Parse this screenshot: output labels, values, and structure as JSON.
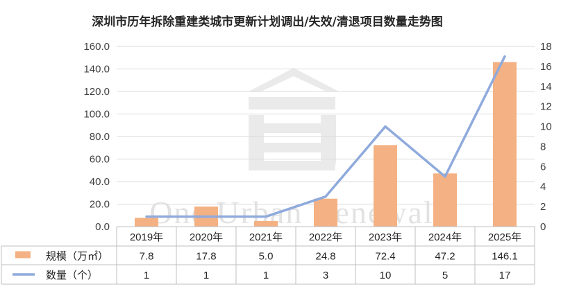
{
  "chart_data": {
    "type": "bar",
    "title": "深圳市历年拆除重建类城市更新计划调出/失效/清退项目数量走势图",
    "categories": [
      "2019年",
      "2020年",
      "2021年",
      "2022年",
      "2023年",
      "2024年",
      "2025年"
    ],
    "series": [
      {
        "name": "规模（万㎡）",
        "type": "bar",
        "axis": "left",
        "color": "#F4B183",
        "values": [
          7.8,
          17.8,
          5.0,
          24.8,
          72.4,
          47.2,
          146.1
        ],
        "labels": [
          "7.8",
          "17.8",
          "5.0",
          "24.8",
          "72.4",
          "47.2",
          "146.1"
        ]
      },
      {
        "name": "数量（个）",
        "type": "line",
        "axis": "right",
        "color": "#8FAADC",
        "values": [
          1,
          1,
          1,
          3,
          10,
          5,
          17
        ],
        "labels": [
          "1",
          "1",
          "1",
          "3",
          "10",
          "5",
          "17"
        ]
      }
    ],
    "y_left": {
      "min": 0,
      "max": 160,
      "step": 20,
      "ticks": [
        "0.0",
        "20.0",
        "40.0",
        "60.0",
        "80.0",
        "100.0",
        "120.0",
        "140.0",
        "160.0"
      ]
    },
    "y_right": {
      "min": 0,
      "max": 18,
      "step": 2,
      "ticks": [
        "0",
        "2",
        "4",
        "6",
        "8",
        "10",
        "12",
        "14",
        "16",
        "18"
      ]
    },
    "grid": true,
    "legend": "data-table",
    "data_table": true
  },
  "watermark": {
    "text": "One Urban Renewal"
  }
}
